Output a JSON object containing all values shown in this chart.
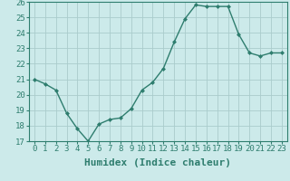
{
  "x": [
    0,
    1,
    2,
    3,
    4,
    5,
    6,
    7,
    8,
    9,
    10,
    11,
    12,
    13,
    14,
    15,
    16,
    17,
    18,
    19,
    20,
    21,
    22,
    23
  ],
  "y": [
    21.0,
    20.7,
    20.3,
    18.8,
    17.8,
    17.0,
    18.1,
    18.4,
    18.5,
    19.1,
    20.3,
    20.8,
    21.7,
    23.4,
    24.9,
    25.8,
    25.7,
    25.7,
    25.7,
    23.9,
    22.7,
    22.5,
    22.7,
    22.7
  ],
  "line_color": "#2e7d6e",
  "marker": "D",
  "marker_size": 2.0,
  "bg_color": "#cceaea",
  "grid_color": "#aacccc",
  "title": "",
  "xlabel": "Humidex (Indice chaleur)",
  "ylabel": "",
  "xlim": [
    -0.5,
    23.5
  ],
  "ylim": [
    17,
    26
  ],
  "yticks": [
    17,
    18,
    19,
    20,
    21,
    22,
    23,
    24,
    25,
    26
  ],
  "xticks": [
    0,
    1,
    2,
    3,
    4,
    5,
    6,
    7,
    8,
    9,
    10,
    11,
    12,
    13,
    14,
    15,
    16,
    17,
    18,
    19,
    20,
    21,
    22,
    23
  ],
  "tick_label_fontsize": 6.5,
  "xlabel_fontsize": 8,
  "tick_color": "#2e7d6e",
  "axis_color": "#2e7d6e"
}
